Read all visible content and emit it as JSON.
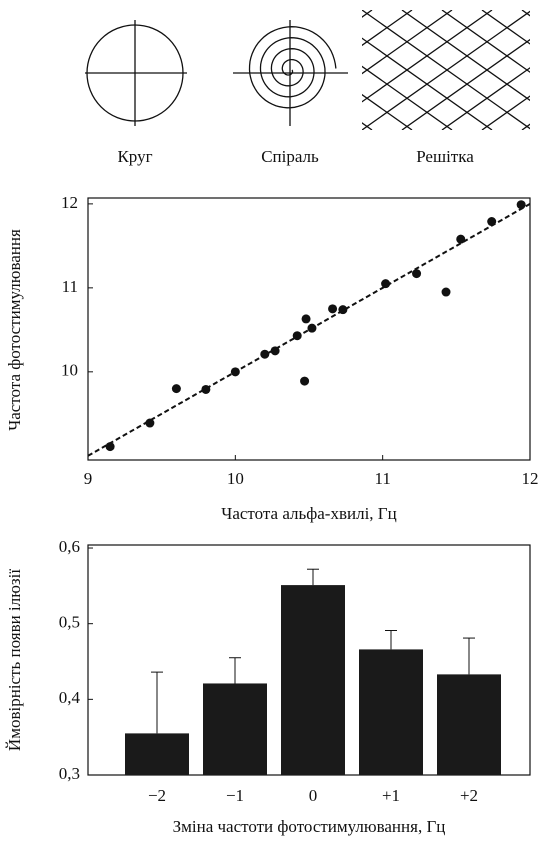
{
  "illustrations": {
    "labels": [
      "Круг",
      "Спіраль",
      "Решітка"
    ]
  },
  "chart_data": [
    {
      "type": "scatter",
      "x_label": "Частота альфа-хвилі, Гц",
      "y_label": "Частота фотостимулювання",
      "x": [
        9.15,
        9.42,
        9.6,
        9.8,
        10.0,
        10.2,
        10.27,
        10.42,
        10.48,
        10.52,
        10.47,
        10.66,
        10.73,
        11.02,
        11.23,
        11.43,
        11.53,
        11.74,
        11.94
      ],
      "values": [
        9.11,
        9.39,
        9.8,
        9.79,
        10.0,
        10.21,
        10.25,
        10.43,
        10.63,
        10.52,
        9.89,
        10.75,
        10.74,
        11.05,
        11.17,
        10.95,
        11.58,
        11.79,
        11.99
      ],
      "color": "#111111",
      "reference_line": {
        "x": [
          9,
          12
        ],
        "y": [
          9,
          12
        ],
        "style": "dashed"
      },
      "xlim": [
        9,
        12
      ],
      "ylim": [
        8.95,
        12.07
      ],
      "xticks": [
        9,
        10,
        11,
        12
      ],
      "yticks": [
        10,
        11,
        12
      ]
    },
    {
      "type": "bar",
      "x_label": "Зміна частоти фотостимулювання, Гц",
      "y_label": "Ймовірність появи ілюзії",
      "categories": [
        "−2",
        "−1",
        "0",
        "+1",
        "+2"
      ],
      "values": [
        0.355,
        0.421,
        0.551,
        0.466,
        0.433
      ],
      "errors": [
        0.081,
        0.034,
        0.021,
        0.025,
        0.048
      ],
      "color": "#1a1a1a",
      "ylim": [
        0.3,
        0.604
      ],
      "yticks": [
        {
          "value": 0.3,
          "label": "0,3"
        },
        {
          "value": 0.4,
          "label": "0,4"
        },
        {
          "value": 0.5,
          "label": "0,5"
        },
        {
          "value": 0.6,
          "label": "0,6"
        }
      ]
    }
  ]
}
